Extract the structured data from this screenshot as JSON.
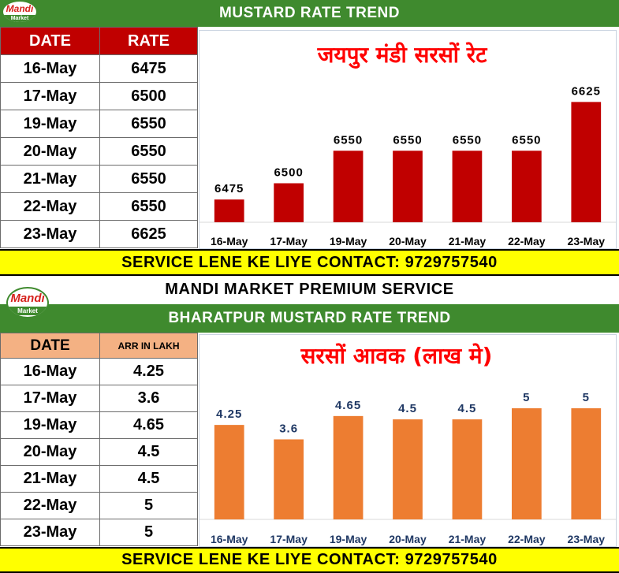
{
  "top_section": {
    "logo": {
      "line1": "Mandi",
      "line2": "Market",
      "icon": "mandi-market-logo-icon"
    },
    "title": "MUSTARD RATE TREND",
    "table": {
      "headers": [
        "DATE",
        "RATE"
      ],
      "rows": [
        [
          "16-May",
          "6475"
        ],
        [
          "17-May",
          "6500"
        ],
        [
          "19-May",
          "6550"
        ],
        [
          "20-May",
          "6550"
        ],
        [
          "21-May",
          "6550"
        ],
        [
          "22-May",
          "6550"
        ],
        [
          "23-May",
          "6625"
        ]
      ]
    },
    "contact": "SERVICE LENE KE LIYE CONTACT: 9729757540"
  },
  "premium_banner": "MANDI MARKET PREMIUM SERVICE",
  "bottom_section": {
    "logo": {
      "line1": "Mandi",
      "line2": "Market",
      "icon": "mandi-market-logo-icon"
    },
    "title": "BHARATPUR MUSTARD RATE TREND",
    "table": {
      "headers": [
        "DATE",
        "ARR IN LAKH"
      ],
      "rows": [
        [
          "16-May",
          "4.25"
        ],
        [
          "17-May",
          "3.6"
        ],
        [
          "19-May",
          "4.65"
        ],
        [
          "20-May",
          "4.5"
        ],
        [
          "21-May",
          "4.5"
        ],
        [
          "22-May",
          "5"
        ],
        [
          "23-May",
          "5"
        ]
      ]
    },
    "contact": "SERVICE LENE KE LIYE CONTACT: 9729757540"
  },
  "colors": {
    "green": "#3f8a2e",
    "yellow": "#ffff00",
    "red_header": "#c00000",
    "red_bar": "#c00000",
    "orange_bar": "#ed7d31",
    "salmon_header": "#f4b183",
    "chart_title": "#ff0000",
    "bottom_label": "#1f3864"
  },
  "chart_data": [
    {
      "type": "bar",
      "title": "जयपुर मंडी सरसों रेट",
      "categories": [
        "16-May",
        "17-May",
        "19-May",
        "20-May",
        "21-May",
        "22-May",
        "23-May"
      ],
      "values": [
        6475,
        6500,
        6550,
        6550,
        6550,
        6550,
        6625
      ],
      "data_labels": [
        "6475",
        "6500",
        "6550",
        "6550",
        "6550",
        "6550",
        "6625"
      ],
      "ylim": [
        6440,
        6640
      ],
      "grid": false,
      "legend": "none",
      "bar_color": "#c00000"
    },
    {
      "type": "bar",
      "title": "सरसों आवक (लाख मे)",
      "categories": [
        "16-May",
        "17-May",
        "19-May",
        "20-May",
        "21-May",
        "22-May",
        "23-May"
      ],
      "values": [
        4.25,
        3.6,
        4.65,
        4.5,
        4.5,
        5,
        5
      ],
      "data_labels": [
        "4.25",
        "3.6",
        "4.65",
        "4.5",
        "4.5",
        "5",
        "5"
      ],
      "ylim": [
        0,
        5.85
      ],
      "grid": false,
      "legend": "none",
      "bar_color": "#ed7d31"
    }
  ]
}
